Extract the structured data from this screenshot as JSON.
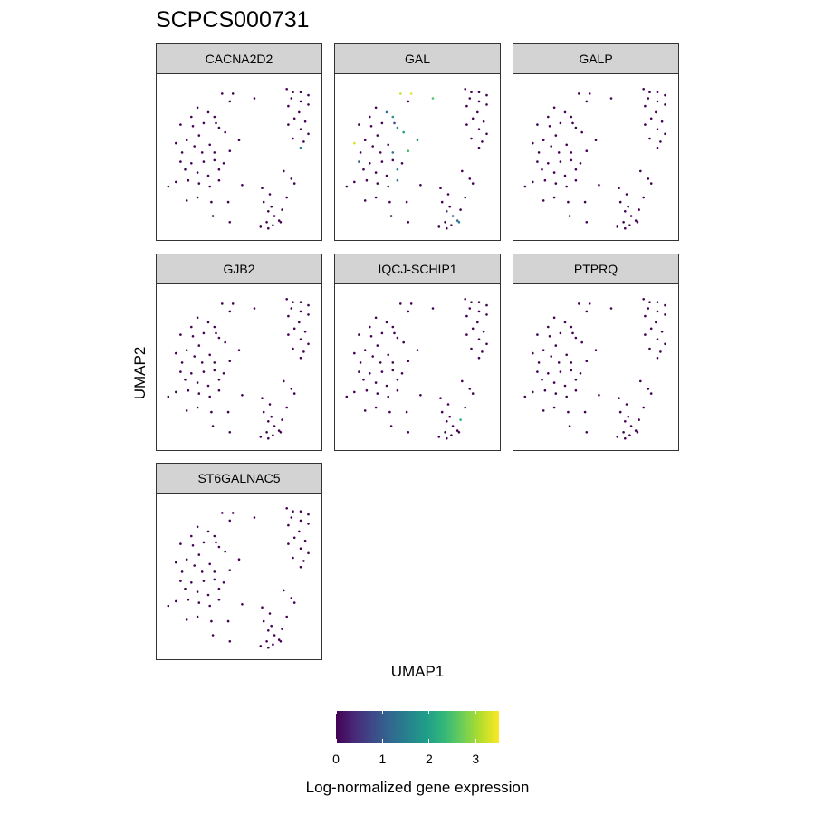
{
  "title": "SCPCS000731",
  "axes": {
    "xlabel": "UMAP1",
    "ylabel": "UMAP2"
  },
  "legend": {
    "title": "Log-normalized gene expression",
    "ticks": [
      "0",
      "1",
      "2",
      "3"
    ],
    "tick_values": [
      0,
      1,
      2,
      3
    ],
    "range": [
      0,
      3.5
    ],
    "palette": [
      "#440154",
      "#482878",
      "#3e4989",
      "#31688e",
      "#26828e",
      "#1f9e89",
      "#35b779",
      "#6ece58",
      "#b5de2b",
      "#fde725"
    ]
  },
  "chart_data": {
    "type": "scatter",
    "title": "SCPCS000731",
    "xlabel": "UMAP1",
    "ylabel": "UMAP2",
    "xlim": [
      0,
      10
    ],
    "ylim": [
      0,
      10
    ],
    "color_scale": "viridis",
    "color_range": [
      0,
      3.5
    ],
    "facets": [
      {
        "name": "CACNA2D2",
        "highlight": [
          [
            9.0,
            5.6,
            1.5
          ]
        ]
      },
      {
        "name": "GAL",
        "highlight": [
          [
            3.9,
            9.1,
            3.2
          ],
          [
            4.6,
            9.1,
            3.4
          ],
          [
            6.0,
            8.8,
            2.5
          ],
          [
            6.6,
            9.3,
            1.5
          ],
          [
            3.0,
            7.9,
            1.2
          ],
          [
            3.4,
            7.6,
            1.8
          ],
          [
            3.5,
            7.2,
            0.8
          ],
          [
            3.7,
            6.9,
            1.6
          ],
          [
            4.1,
            6.6,
            2.0
          ],
          [
            5.0,
            6.1,
            1.7
          ],
          [
            4.4,
            5.4,
            2.4
          ],
          [
            0.9,
            5.9,
            3.3
          ],
          [
            3.4,
            5.3,
            1.4
          ],
          [
            1.2,
            4.7,
            1.1
          ],
          [
            3.7,
            4.2,
            1.6
          ],
          [
            3.7,
            3.5,
            1.3
          ],
          [
            6.9,
            1.5,
            0.7
          ],
          [
            7.3,
            1.2,
            1.0
          ],
          [
            7.6,
            0.9,
            1.2
          ],
          [
            7.7,
            0.8,
            1.4
          ]
        ]
      },
      {
        "name": "GALP",
        "highlight": []
      },
      {
        "name": "GJB2",
        "highlight": []
      },
      {
        "name": "IQCJ-SCHIP1",
        "highlight": [
          [
            7.8,
            1.6,
            2.2
          ]
        ]
      },
      {
        "name": "PTPRQ",
        "highlight": []
      },
      {
        "name": "ST6GALNAC5",
        "highlight": []
      }
    ],
    "cells": [
      [
        8.1,
        9.4
      ],
      [
        8.5,
        9.2
      ],
      [
        9.0,
        9.2
      ],
      [
        9.5,
        9.0
      ],
      [
        8.4,
        8.8
      ],
      [
        9.0,
        8.6
      ],
      [
        9.5,
        8.4
      ],
      [
        8.2,
        8.3
      ],
      [
        8.9,
        7.9
      ],
      [
        8.6,
        7.5
      ],
      [
        9.3,
        7.3
      ],
      [
        8.2,
        7.1
      ],
      [
        9.0,
        6.8
      ],
      [
        9.5,
        6.5
      ],
      [
        8.5,
        6.2
      ],
      [
        9.2,
        6.0
      ],
      [
        9.0,
        5.6
      ],
      [
        3.9,
        9.1
      ],
      [
        4.6,
        9.1
      ],
      [
        6.0,
        8.8
      ],
      [
        4.4,
        8.6
      ],
      [
        2.3,
        8.2
      ],
      [
        1.9,
        7.6
      ],
      [
        3.0,
        7.9
      ],
      [
        3.4,
        7.6
      ],
      [
        1.2,
        7.1
      ],
      [
        2.0,
        7.0
      ],
      [
        2.7,
        7.2
      ],
      [
        3.5,
        7.2
      ],
      [
        3.7,
        6.9
      ],
      [
        4.1,
        6.6
      ],
      [
        2.4,
        6.4
      ],
      [
        1.6,
        6.1
      ],
      [
        0.9,
        5.9
      ],
      [
        2.1,
        5.7
      ],
      [
        3.1,
        5.8
      ],
      [
        1.3,
        5.3
      ],
      [
        2.6,
        5.3
      ],
      [
        3.4,
        5.3
      ],
      [
        4.4,
        5.4
      ],
      [
        5.0,
        6.1
      ],
      [
        1.2,
        4.7
      ],
      [
        1.9,
        4.6
      ],
      [
        2.7,
        4.7
      ],
      [
        3.4,
        4.8
      ],
      [
        4.0,
        4.6
      ],
      [
        1.5,
        4.2
      ],
      [
        2.3,
        4.0
      ],
      [
        3.0,
        3.8
      ],
      [
        3.7,
        4.2
      ],
      [
        0.4,
        3.1
      ],
      [
        0.9,
        3.4
      ],
      [
        1.7,
        3.5
      ],
      [
        2.4,
        3.3
      ],
      [
        3.1,
        3.1
      ],
      [
        3.7,
        3.5
      ],
      [
        5.2,
        3.2
      ],
      [
        1.6,
        2.2
      ],
      [
        2.3,
        2.4
      ],
      [
        3.2,
        2.1
      ],
      [
        4.3,
        2.1
      ],
      [
        3.3,
        1.2
      ],
      [
        4.4,
        0.8
      ],
      [
        6.5,
        3.0
      ],
      [
        7.0,
        2.6
      ],
      [
        6.9,
        1.5
      ],
      [
        7.3,
        1.2
      ],
      [
        7.6,
        0.9
      ],
      [
        7.7,
        0.8
      ],
      [
        6.6,
        2.1
      ],
      [
        7.1,
        1.8
      ],
      [
        7.8,
        1.6
      ],
      [
        8.1,
        2.4
      ],
      [
        8.6,
        3.3
      ],
      [
        7.9,
        4.1
      ],
      [
        8.4,
        3.6
      ],
      [
        6.8,
        0.8
      ],
      [
        7.2,
        0.6
      ],
      [
        6.4,
        0.5
      ],
      [
        6.9,
        0.4
      ]
    ]
  }
}
